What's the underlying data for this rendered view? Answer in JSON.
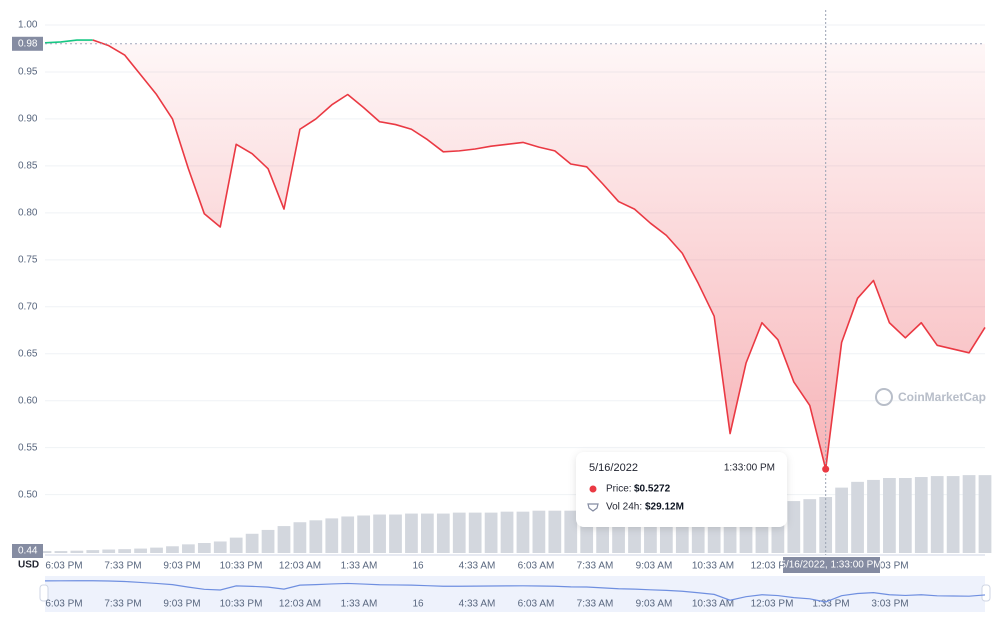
{
  "chart_data": {
    "type": "line",
    "currency": "USD",
    "watermark": "CoinMarketCap",
    "x_labels": [
      "6:03 PM",
      "7:33 PM",
      "9:03 PM",
      "10:33 PM",
      "12:03 AM",
      "1:33 AM",
      "16",
      "4:33 AM",
      "6:03 AM",
      "7:33 AM",
      "9:03 AM",
      "10:33 AM",
      "12:03 PM",
      "1:33 PM",
      "3:03 PM"
    ],
    "ylim": [
      0.44,
      1.0
    ],
    "yticks": [
      {
        "value": 1.0,
        "label": "1.00"
      },
      0.95,
      {
        "value": 0.9,
        "label": "0.90"
      },
      0.85,
      {
        "value": 0.8,
        "label": "0.80"
      },
      0.75,
      {
        "value": 0.7,
        "label": "0.70"
      },
      0.65,
      {
        "value": 0.6,
        "label": "0.60"
      },
      0.55,
      {
        "value": 0.5,
        "label": "0.50"
      }
    ],
    "baseline": 0.98,
    "grid": true,
    "up_color": "#16c784",
    "series": [
      {
        "name": "Price:",
        "color": "#ea3943",
        "values": [
          0.981,
          0.982,
          0.984,
          0.984,
          0.978,
          0.968,
          0.947,
          0.926,
          0.9,
          0.847,
          0.799,
          0.785,
          0.873,
          0.863,
          0.847,
          0.804,
          0.889,
          0.9,
          0.915,
          0.926,
          0.912,
          0.897,
          0.894,
          0.889,
          0.878,
          0.865,
          0.866,
          0.868,
          0.871,
          0.873,
          0.875,
          0.87,
          0.866,
          0.852,
          0.849,
          0.831,
          0.812,
          0.804,
          0.789,
          0.776,
          0.757,
          0.725,
          0.69,
          0.565,
          0.64,
          0.683,
          0.665,
          0.62,
          0.595,
          0.5272,
          0.662,
          0.709,
          0.728,
          0.683,
          0.667,
          0.683,
          0.659,
          0.655,
          0.651,
          0.678
        ]
      },
      {
        "name": "Vol 24h:",
        "type": "bar",
        "color": "#d3d7de",
        "values": [
          1.0,
          1.0,
          1.2,
          1.5,
          1.8,
          2.0,
          2.3,
          2.8,
          3.5,
          4.5,
          5.2,
          6.0,
          8.0,
          10.0,
          12.0,
          14.0,
          16.0,
          17.0,
          18.0,
          19.0,
          19.5,
          20.0,
          20.0,
          20.5,
          20.5,
          20.5,
          21.0,
          21.0,
          21.0,
          21.5,
          21.5,
          22.0,
          22.0,
          22.0,
          22.0,
          22.5,
          22.5,
          22.5,
          22.0,
          21.0,
          19.0,
          17.5,
          15.0,
          14.0,
          16.0,
          22.0,
          26.0,
          27.0,
          28.0,
          29.12,
          34.0,
          37.0,
          38.0,
          39.0,
          39.0,
          39.5,
          40.0,
          40.0,
          40.5,
          40.5
        ]
      }
    ],
    "tooltip": {
      "date": "5/16/2022",
      "time": "1:33:00 PM",
      "price": "$0.5272",
      "volume": "$29.12M"
    },
    "crosshair_label": "5/16/2022, 1:33:00 PM"
  }
}
